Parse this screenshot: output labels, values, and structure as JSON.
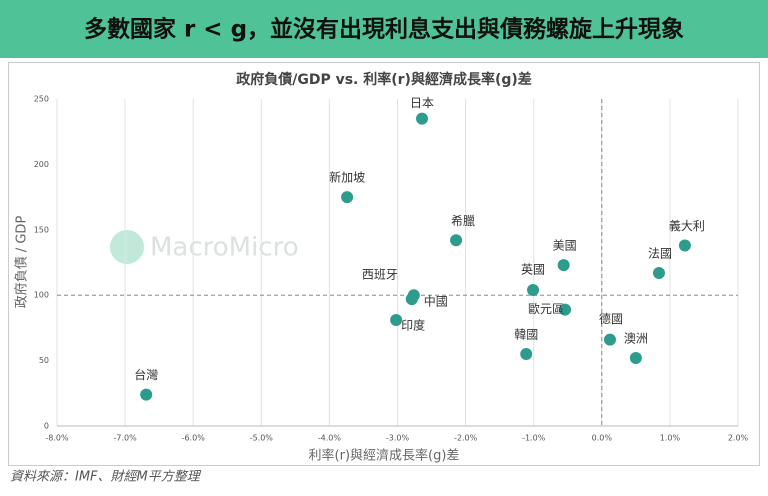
{
  "header": {
    "title": "多數國家 r < g，並沒有出現利息支出與債務螺旋上升現象"
  },
  "chart_data": {
    "type": "scatter",
    "title": "政府負債/GDP vs. 利率(r)與經濟成長率(g)差",
    "x_label": "利率(r)與經濟成長率(g)差",
    "y_label": "政府負債 / GDP",
    "watermark": "MacroMicro",
    "color": "#2e9c8c",
    "labels": [
      "日本",
      "新加坡",
      "希臘",
      "義大利",
      "法國",
      "美國",
      "英國",
      "西班牙",
      "中國",
      "歐元區",
      "印度",
      "德國",
      "澳洲",
      "韓國",
      "台灣"
    ],
    "x": [
      -2.64,
      -3.74,
      -2.14,
      1.22,
      0.84,
      -0.56,
      -1.01,
      -2.76,
      -2.79,
      -0.54,
      -3.02,
      0.12,
      0.5,
      -1.11,
      -6.69
    ],
    "y": [
      235,
      175,
      142,
      138,
      117,
      123,
      104,
      100,
      97,
      89,
      81,
      66,
      52,
      55,
      24
    ],
    "xlim": [
      -8,
      2
    ],
    "xticks": [
      {
        "value": -8,
        "label": "-8.0%"
      },
      {
        "value": -7,
        "label": "-7.0%"
      },
      {
        "value": -6,
        "label": "-6.0%"
      },
      {
        "value": -5,
        "label": "-5.0%"
      },
      {
        "value": -4,
        "label": "-4.0%"
      },
      {
        "value": -3,
        "label": "-3.0%"
      },
      {
        "value": -2,
        "label": "-2.0%"
      },
      {
        "value": -1,
        "label": "-1.0%"
      },
      {
        "value": 0,
        "label": "0.0%"
      },
      {
        "value": 1,
        "label": "1.0%"
      },
      {
        "value": 2,
        "label": "2.0%"
      }
    ],
    "ylim": [
      0,
      250
    ],
    "yticks": [
      0,
      50,
      100,
      150,
      200,
      250
    ],
    "ref_x": 0,
    "ref_y": 100,
    "grid": true
  },
  "footer": {
    "source": "資料來源：IMF、財經M平方整理"
  }
}
